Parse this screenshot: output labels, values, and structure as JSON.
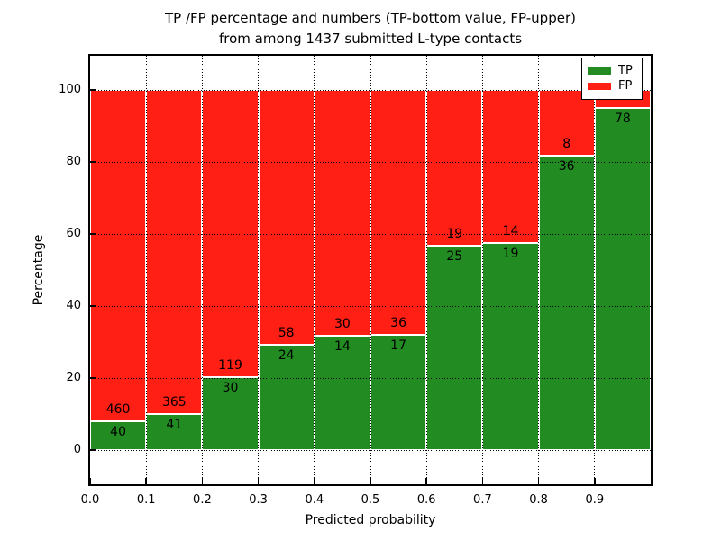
{
  "figure": {
    "title_line1": "TP /FP percentage and numbers (TP-bottom value, FP-upper)",
    "title_line2": "from among 1437 submitted L-type contacts"
  },
  "axes": {
    "xlabel": "Predicted probability",
    "ylabel": "Percentage",
    "xlim": [
      0.0,
      1.0
    ],
    "ylim": [
      -9.5,
      109.5
    ],
    "xticks": [
      {
        "value": 0.0,
        "label": "0.0"
      },
      {
        "value": 0.1,
        "label": "0.1"
      },
      {
        "value": 0.2,
        "label": "0.2"
      },
      {
        "value": 0.3,
        "label": "0.3"
      },
      {
        "value": 0.4,
        "label": "0.4"
      },
      {
        "value": 0.5,
        "label": "0.5"
      },
      {
        "value": 0.6,
        "label": "0.6"
      },
      {
        "value": 0.7,
        "label": "0.7"
      },
      {
        "value": 0.8,
        "label": "0.8"
      },
      {
        "value": 0.9,
        "label": "0.9"
      }
    ],
    "yticks": [
      {
        "value": 0,
        "label": "0"
      },
      {
        "value": 20,
        "label": "20"
      },
      {
        "value": 40,
        "label": "40"
      },
      {
        "value": 60,
        "label": "60"
      },
      {
        "value": 80,
        "label": "80"
      },
      {
        "value": 100,
        "label": "100"
      }
    ],
    "grid_style": "dotted black, drawn over bars"
  },
  "legend": {
    "position": "upper right",
    "items": [
      {
        "label": "TP",
        "color": "#228b22"
      },
      {
        "label": "FP",
        "color": "#ff1f14"
      }
    ]
  },
  "chart_data": {
    "type": "bar",
    "stacked": true,
    "normalized": "each 0.1-wide probability bin scaled to 100%",
    "bin_width": 0.1,
    "total_contacts": 1437,
    "colors": {
      "tp": "#228b22",
      "fp": "#ff1f14"
    },
    "note": "FP count of last bin (4) is depicted by the red sliver but its text label is hidden behind the legend",
    "bars": [
      {
        "x": 0.0,
        "tp": 40,
        "fp": 460,
        "tp_label": "40",
        "fp_label": "460"
      },
      {
        "x": 0.1,
        "tp": 41,
        "fp": 365,
        "tp_label": "41",
        "fp_label": "365"
      },
      {
        "x": 0.2,
        "tp": 30,
        "fp": 119,
        "tp_label": "30",
        "fp_label": "119"
      },
      {
        "x": 0.3,
        "tp": 24,
        "fp": 58,
        "tp_label": "24",
        "fp_label": "58"
      },
      {
        "x": 0.4,
        "tp": 14,
        "fp": 30,
        "tp_label": "14",
        "fp_label": "30"
      },
      {
        "x": 0.5,
        "tp": 17,
        "fp": 36,
        "tp_label": "17",
        "fp_label": "36"
      },
      {
        "x": 0.6,
        "tp": 25,
        "fp": 19,
        "tp_label": "25",
        "fp_label": "19"
      },
      {
        "x": 0.7,
        "tp": 19,
        "fp": 14,
        "tp_label": "19",
        "fp_label": "14"
      },
      {
        "x": 0.8,
        "tp": 36,
        "fp": 8,
        "tp_label": "36",
        "fp_label": "8"
      },
      {
        "x": 0.9,
        "tp": 78,
        "fp": 4,
        "tp_label": "78",
        "fp_label": ""
      }
    ]
  }
}
